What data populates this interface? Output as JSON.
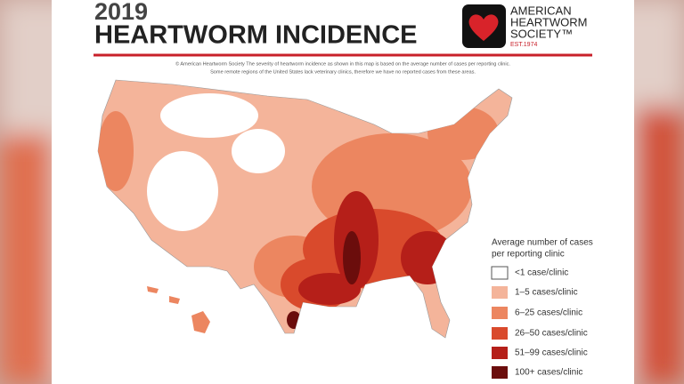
{
  "header": {
    "year": "2019",
    "title": "HEARTWORM INCIDENCE"
  },
  "logo": {
    "line1": "AMERICAN",
    "line2": "HEARTWORM",
    "line3": "SOCIETY™",
    "est": "EST.1974"
  },
  "caption": {
    "line1": "© American Heartworm Society  The severity of heartworm incidence as shown in this map is based on the average number of cases per reporting clinic.",
    "line2": "Some remote regions of the United States lack veterinary clinics, therefore we have no reported cases from these areas."
  },
  "legend": {
    "title_line1": "Average number of cases",
    "title_line2": "per reporting clinic",
    "items": [
      "<1 case/clinic",
      "1–5 cases/clinic",
      "6–25 cases/clinic",
      "26–50 cases/clinic",
      "51–99 cases/clinic",
      "100+ cases/clinic"
    ]
  }
}
